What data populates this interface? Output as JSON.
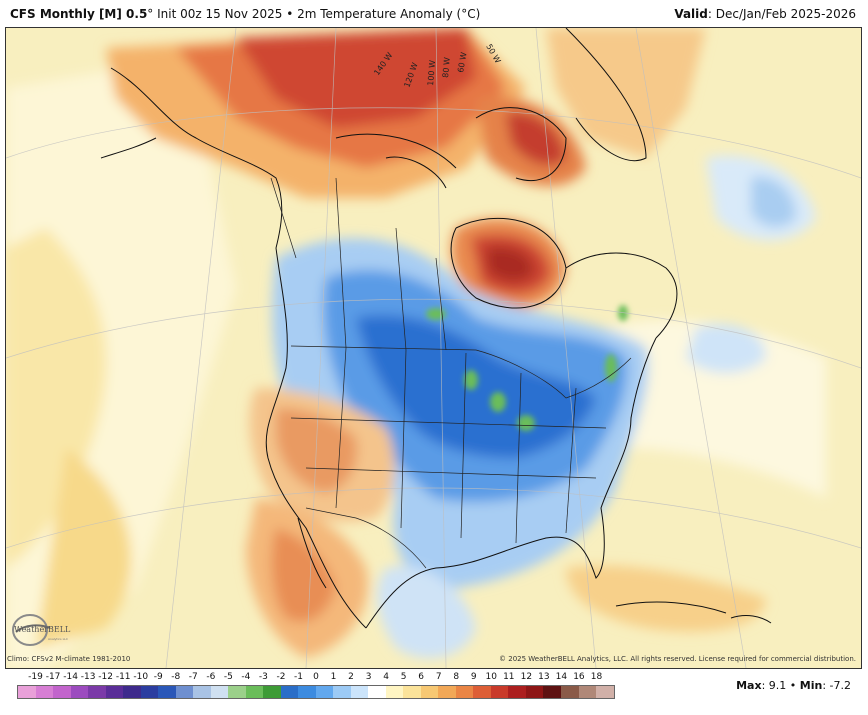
{
  "header": {
    "model": "CFS Monthly [M] 0.5",
    "degree": "°",
    "init": "Init 00z 15 Nov 2025",
    "separator": "•",
    "field": "2m Temperature Anomaly (°C)",
    "valid_label": "Valid",
    "valid_value": ": Dec/Jan/Feb 2025-2026"
  },
  "map": {
    "longitude_labels": [
      "140 W",
      "120 W",
      "100 W",
      "80 W",
      "60 W",
      "50 W"
    ],
    "logo_text": "WeatherBELL",
    "logo_subtext": "Analytics LLC"
  },
  "footer": {
    "climo": "Climo: CFSv2 M-climate 1981-2010",
    "copyright": "© 2025 WeatherBELL Analytics, LLC. All rights reserved. License required for commercial distribution."
  },
  "colorbar": {
    "labels": [
      "-19",
      "-17",
      "-14",
      "-13",
      "-12",
      "-11",
      "-10",
      "-9",
      "-8",
      "-7",
      "-6",
      "-5",
      "-4",
      "-3",
      "-2",
      "-1",
      "0",
      "1",
      "2",
      "3",
      "4",
      "5",
      "6",
      "7",
      "8",
      "9",
      "10",
      "11",
      "12",
      "13",
      "14",
      "16",
      "18"
    ],
    "colors": [
      "#e9a0d9",
      "#d77ed4",
      "#c264cc",
      "#9c4bbf",
      "#7b3aa8",
      "#5a2d98",
      "#3e2a8c",
      "#2b3da0",
      "#2a57b8",
      "#6e8fd0",
      "#a9c3e5",
      "#cfe0f1",
      "#9bd08a",
      "#6abd5a",
      "#3d9b36",
      "#2a6ec8",
      "#3c8be0",
      "#62a8ee",
      "#9ccaf5",
      "#cbe4fb",
      "#ffffff",
      "#fff5c3",
      "#fbe39a",
      "#f7c873",
      "#f2a857",
      "#ea8545",
      "#dd5e36",
      "#c93a2a",
      "#ac1f1f",
      "#8e1616",
      "#5e1212",
      "#8a5a48",
      "#b08878",
      "#d1b0a8"
    ],
    "value_indicator": ""
  },
  "stats": {
    "max_label": "Max",
    "max_value": ": 9.1",
    "separator": "•",
    "min_label": "Min",
    "min_value": ": -7.2"
  }
}
